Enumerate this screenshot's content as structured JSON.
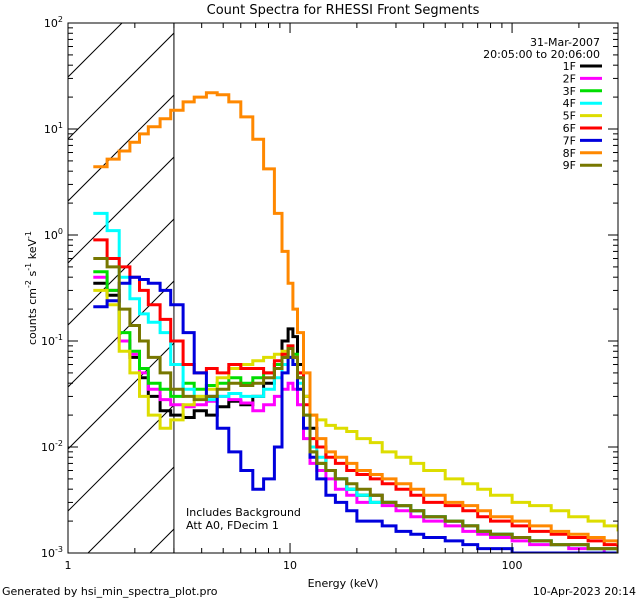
{
  "chart_data": {
    "type": "line",
    "title": "Count Spectra for RHESSI Front Segments",
    "xlabel": "Energy (keV)",
    "ylabel": "counts cm^-2 s^-1 keV^-1",
    "xscale": "log",
    "yscale": "log",
    "xlim": [
      1,
      300
    ],
    "ylim": [
      0.001,
      100
    ],
    "x_ticks": [
      {
        "value": 1,
        "label": "1"
      },
      {
        "value": 10,
        "label": "10"
      },
      {
        "value": 100,
        "label": "100"
      }
    ],
    "y_ticks": [
      {
        "value": 0.001,
        "base": "10",
        "exp": "-3"
      },
      {
        "value": 0.01,
        "base": "10",
        "exp": "-2"
      },
      {
        "value": 0.1,
        "base": "10",
        "exp": "-1"
      },
      {
        "value": 1,
        "base": "10",
        "exp": "0"
      },
      {
        "value": 10,
        "base": "10",
        "exp": "1"
      },
      {
        "value": 100,
        "base": "10",
        "exp": "2"
      }
    ],
    "attenuator_region": {
      "xmin": 1,
      "xmax": 3
    },
    "date": "31-Mar-2007",
    "time_range": "20:05:00 to 20:06:00",
    "annotations": [
      "Includes Background",
      "Att A0, FDecim 1"
    ],
    "series": [
      {
        "name": "1F",
        "color": "#000000",
        "x": [
          1.3,
          1.5,
          1.7,
          1.9,
          2.1,
          2.3,
          2.6,
          2.9,
          3.3,
          3.7,
          4.2,
          4.7,
          5.3,
          6,
          6.8,
          7.6,
          8.5,
          9.2,
          9.8,
          10.3,
          10.8,
          11.5,
          12.3,
          13.2,
          14.5,
          16,
          18,
          20,
          23,
          26,
          30,
          35,
          40,
          50,
          60,
          70,
          80,
          100,
          120,
          150,
          180,
          220,
          260,
          300
        ],
        "y": [
          0.35,
          0.27,
          0.1,
          0.07,
          0.045,
          0.03,
          0.022,
          0.02,
          0.019,
          0.022,
          0.02,
          0.024,
          0.027,
          0.025,
          0.03,
          0.04,
          0.06,
          0.1,
          0.13,
          0.11,
          0.06,
          0.03,
          0.015,
          0.01,
          0.006,
          0.005,
          0.004,
          0.0035,
          0.0035,
          0.003,
          0.0028,
          0.0025,
          0.0022,
          0.002,
          0.0018,
          0.0016,
          0.0015,
          0.0014,
          0.0013,
          0.0012,
          0.0012,
          0.0011,
          0.0011,
          0.0011
        ]
      },
      {
        "name": "2F",
        "color": "#ff00ff",
        "x": [
          1.3,
          1.5,
          1.7,
          1.9,
          2.1,
          2.3,
          2.6,
          2.9,
          3.3,
          3.7,
          4.2,
          4.7,
          5.3,
          6,
          6.8,
          7.6,
          8.5,
          9.2,
          9.8,
          10.3,
          10.8,
          11.5,
          12.3,
          13.2,
          14.5,
          16,
          18,
          20,
          23,
          26,
          30,
          35,
          40,
          50,
          60,
          70,
          80,
          100,
          120,
          150,
          180,
          220,
          260,
          300
        ],
        "y": [
          0.4,
          0.3,
          0.1,
          0.075,
          0.05,
          0.035,
          0.028,
          0.025,
          0.024,
          0.025,
          0.027,
          0.03,
          0.028,
          0.026,
          0.022,
          0.025,
          0.03,
          0.035,
          0.04,
          0.035,
          0.025,
          0.012,
          0.007,
          0.006,
          0.005,
          0.004,
          0.0035,
          0.003,
          0.003,
          0.0028,
          0.0025,
          0.0022,
          0.002,
          0.0018,
          0.0016,
          0.0015,
          0.0014,
          0.0013,
          0.0012,
          0.0012,
          0.0011,
          0.0011,
          0.001,
          0.001
        ]
      },
      {
        "name": "3F",
        "color": "#00dd00",
        "x": [
          1.3,
          1.5,
          1.7,
          1.9,
          2.1,
          2.3,
          2.6,
          2.9,
          3.3,
          3.7,
          4.2,
          4.7,
          5.3,
          6,
          6.8,
          7.6,
          8.5,
          9.2,
          9.8,
          10.3,
          10.8,
          11.5,
          12.3,
          13.2,
          14.5,
          16,
          18,
          20,
          23,
          26,
          30,
          35,
          40,
          50,
          60,
          70,
          80,
          100,
          120,
          150,
          180,
          220,
          260,
          300
        ],
        "y": [
          0.45,
          0.3,
          0.12,
          0.08,
          0.055,
          0.04,
          0.035,
          0.03,
          0.04,
          0.035,
          0.038,
          0.04,
          0.045,
          0.04,
          0.045,
          0.05,
          0.06,
          0.07,
          0.09,
          0.075,
          0.045,
          0.02,
          0.009,
          0.007,
          0.006,
          0.005,
          0.004,
          0.0035,
          0.003,
          0.003,
          0.0028,
          0.0025,
          0.0022,
          0.002,
          0.0018,
          0.0016,
          0.0015,
          0.0014,
          0.0013,
          0.0012,
          0.0012,
          0.0011,
          0.0011,
          0.001
        ]
      },
      {
        "name": "4F",
        "color": "#00ffff",
        "x": [
          1.3,
          1.5,
          1.7,
          1.9,
          2.1,
          2.3,
          2.6,
          2.9,
          3.3,
          3.7,
          4.2,
          4.7,
          5.3,
          6,
          6.8,
          7.6,
          8.5,
          9.2,
          9.8,
          10.3,
          10.8,
          11.5,
          12.3,
          13.2,
          14.5,
          16,
          18,
          20,
          23,
          26,
          30,
          35,
          40,
          50,
          60,
          70,
          80,
          100,
          120,
          150,
          180,
          220,
          260,
          300
        ],
        "y": [
          1.6,
          1.1,
          0.4,
          0.25,
          0.18,
          0.15,
          0.12,
          0.06,
          0.035,
          0.03,
          0.028,
          0.03,
          0.032,
          0.03,
          0.03,
          0.035,
          0.045,
          0.06,
          0.07,
          0.06,
          0.04,
          0.02,
          0.01,
          0.008,
          0.006,
          0.005,
          0.004,
          0.0035,
          0.003,
          0.003,
          0.0028,
          0.0025,
          0.0022,
          0.002,
          0.0018,
          0.0016,
          0.0015,
          0.0014,
          0.0013,
          0.0012,
          0.0012,
          0.0011,
          0.0011,
          0.001
        ]
      },
      {
        "name": "5F",
        "color": "#dddd00",
        "x": [
          1.3,
          1.5,
          1.7,
          1.9,
          2.1,
          2.3,
          2.6,
          2.9,
          3.3,
          3.7,
          4.2,
          4.7,
          5.3,
          6,
          6.8,
          7.6,
          8.5,
          9.2,
          9.8,
          10.3,
          10.8,
          11.5,
          12.3,
          13.2,
          14.5,
          16,
          18,
          20,
          23,
          26,
          30,
          35,
          40,
          50,
          60,
          70,
          80,
          100,
          120,
          150,
          180,
          220,
          260,
          300
        ],
        "y": [
          0.3,
          0.22,
          0.08,
          0.05,
          0.03,
          0.02,
          0.015,
          0.018,
          0.025,
          0.03,
          0.035,
          0.045,
          0.055,
          0.06,
          0.065,
          0.07,
          0.075,
          0.08,
          0.085,
          0.07,
          0.05,
          0.03,
          0.02,
          0.018,
          0.016,
          0.015,
          0.014,
          0.012,
          0.011,
          0.009,
          0.008,
          0.007,
          0.006,
          0.005,
          0.0045,
          0.004,
          0.0035,
          0.003,
          0.0028,
          0.0025,
          0.0022,
          0.002,
          0.0018,
          0.0016
        ]
      },
      {
        "name": "6F",
        "color": "#ff0000",
        "x": [
          1.3,
          1.5,
          1.7,
          1.9,
          2.1,
          2.3,
          2.6,
          2.9,
          3.3,
          3.7,
          4.2,
          4.7,
          5.3,
          6,
          6.8,
          7.6,
          8.5,
          9.2,
          9.8,
          10.3,
          10.8,
          11.5,
          12.3,
          13.2,
          14.5,
          16,
          18,
          20,
          23,
          26,
          30,
          35,
          40,
          50,
          60,
          70,
          80,
          100,
          120,
          150,
          180,
          220,
          260,
          300
        ],
        "y": [
          0.9,
          0.6,
          0.5,
          0.4,
          0.3,
          0.22,
          0.16,
          0.1,
          0.06,
          0.05,
          0.055,
          0.05,
          0.06,
          0.055,
          0.055,
          0.05,
          0.065,
          0.075,
          0.09,
          0.07,
          0.05,
          0.025,
          0.012,
          0.01,
          0.008,
          0.007,
          0.006,
          0.0055,
          0.005,
          0.0045,
          0.004,
          0.0035,
          0.003,
          0.0028,
          0.0025,
          0.0022,
          0.002,
          0.0018,
          0.0016,
          0.0015,
          0.0014,
          0.0013,
          0.0012,
          0.0011
        ]
      },
      {
        "name": "7F",
        "color": "#0000dd",
        "x": [
          1.3,
          1.5,
          1.7,
          1.9,
          2.1,
          2.3,
          2.6,
          2.9,
          3.3,
          3.7,
          4.2,
          4.7,
          5.3,
          6,
          6.8,
          7.6,
          8.5,
          9.2,
          9.8,
          10.3,
          10.8,
          11.5,
          12.3,
          13.2,
          14.5,
          16,
          18,
          20,
          23,
          26,
          30,
          35,
          40,
          50,
          60,
          70,
          80,
          100,
          120,
          150,
          180,
          220,
          260,
          300
        ],
        "y": [
          0.21,
          0.24,
          0.35,
          0.4,
          0.38,
          0.35,
          0.3,
          0.22,
          0.12,
          0.05,
          0.03,
          0.015,
          0.009,
          0.006,
          0.004,
          0.005,
          0.01,
          0.05,
          0.07,
          0.06,
          0.035,
          0.015,
          0.008,
          0.005,
          0.0035,
          0.003,
          0.0025,
          0.002,
          0.002,
          0.0018,
          0.0016,
          0.0015,
          0.0014,
          0.0013,
          0.0012,
          0.0011,
          0.0011,
          0.001,
          0.001,
          0.001,
          0.001,
          0.001,
          0.001,
          0.001
        ]
      },
      {
        "name": "8F",
        "color": "#ff8800",
        "x": [
          1.3,
          1.5,
          1.7,
          1.9,
          2.1,
          2.3,
          2.6,
          2.9,
          3.3,
          3.7,
          4.2,
          4.7,
          5.3,
          6,
          6.8,
          7.6,
          8.5,
          9.2,
          9.8,
          10.3,
          10.8,
          11.5,
          12.3,
          13.2,
          14.5,
          16,
          18,
          20,
          23,
          26,
          30,
          35,
          40,
          50,
          60,
          70,
          80,
          100,
          120,
          150,
          180,
          220,
          260,
          300
        ],
        "y": [
          4.4,
          5.2,
          6.2,
          7.5,
          9,
          10.5,
          12.5,
          15,
          18,
          20,
          22,
          21,
          18,
          13,
          8,
          4.2,
          1.6,
          0.7,
          0.35,
          0.2,
          0.12,
          0.05,
          0.02,
          0.012,
          0.009,
          0.008,
          0.007,
          0.006,
          0.0055,
          0.005,
          0.0045,
          0.004,
          0.0035,
          0.003,
          0.0028,
          0.0025,
          0.0022,
          0.002,
          0.0018,
          0.0016,
          0.0015,
          0.0014,
          0.0013,
          0.0012
        ]
      },
      {
        "name": "9F",
        "color": "#777700",
        "x": [
          1.3,
          1.5,
          1.7,
          1.9,
          2.1,
          2.3,
          2.6,
          2.9,
          3.3,
          3.7,
          4.2,
          4.7,
          5.3,
          6,
          6.8,
          7.6,
          8.5,
          9.2,
          9.8,
          10.3,
          10.8,
          11.5,
          12.3,
          13.2,
          14.5,
          16,
          18,
          20,
          23,
          26,
          30,
          35,
          40,
          50,
          60,
          70,
          80,
          100,
          120,
          150,
          180,
          220,
          260,
          300
        ],
        "y": [
          0.6,
          0.5,
          0.2,
          0.14,
          0.1,
          0.07,
          0.05,
          0.035,
          0.03,
          0.028,
          0.03,
          0.035,
          0.04,
          0.038,
          0.04,
          0.045,
          0.055,
          0.07,
          0.085,
          0.07,
          0.045,
          0.02,
          0.009,
          0.007,
          0.006,
          0.005,
          0.0045,
          0.004,
          0.0035,
          0.003,
          0.0028,
          0.0025,
          0.0022,
          0.002,
          0.0018,
          0.0016,
          0.0015,
          0.0014,
          0.0013,
          0.0012,
          0.0012,
          0.0011,
          0.0011,
          0.001
        ]
      }
    ]
  },
  "footer": {
    "generated_by": "Generated by hsi_min_spectra_plot.pro",
    "timestamp": "10-Apr-2023 20:14"
  }
}
